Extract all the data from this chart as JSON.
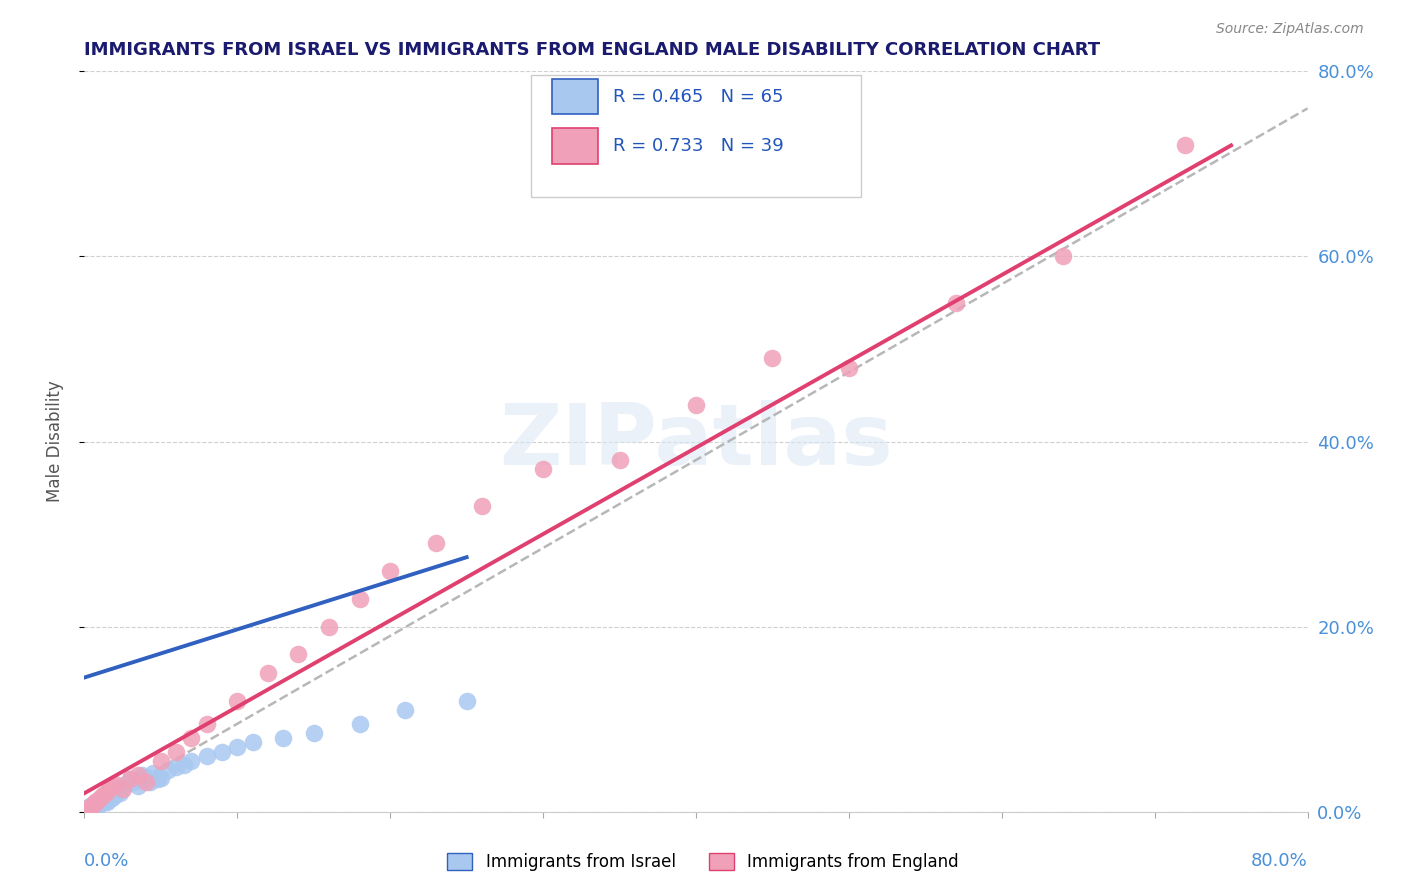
{
  "title": "IMMIGRANTS FROM ISRAEL VS IMMIGRANTS FROM ENGLAND MALE DISABILITY CORRELATION CHART",
  "source": "Source: ZipAtlas.com",
  "ylabel": "Male Disability",
  "watermark": "ZIPatlas",
  "legend_r1": "0.465",
  "legend_n1": "65",
  "legend_r2": "0.733",
  "legend_n2": "39",
  "color_israel": "#a8c8f0",
  "color_england": "#f0a0b8",
  "color_israel_line": "#3060c0",
  "color_england_line": "#e04070",
  "color_dashed": "#b0b0b0",
  "xlim": [
    0.0,
    0.8
  ],
  "ylim": [
    0.0,
    0.8
  ],
  "ytick_values": [
    0.0,
    0.2,
    0.4,
    0.6,
    0.8
  ],
  "israel_x": [
    0.0,
    0.001,
    0.002,
    0.002,
    0.003,
    0.003,
    0.003,
    0.004,
    0.004,
    0.004,
    0.005,
    0.005,
    0.005,
    0.006,
    0.006,
    0.006,
    0.007,
    0.007,
    0.008,
    0.008,
    0.009,
    0.009,
    0.01,
    0.01,
    0.011,
    0.011,
    0.012,
    0.012,
    0.013,
    0.013,
    0.014,
    0.015,
    0.015,
    0.016,
    0.017,
    0.018,
    0.019,
    0.02,
    0.021,
    0.022,
    0.023,
    0.025,
    0.027,
    0.03,
    0.032,
    0.035,
    0.038,
    0.04,
    0.043,
    0.045,
    0.048,
    0.05,
    0.055,
    0.06,
    0.065,
    0.07,
    0.08,
    0.09,
    0.1,
    0.11,
    0.13,
    0.15,
    0.18,
    0.21,
    0.25
  ],
  "israel_y": [
    0.0,
    0.001,
    0.001,
    0.003,
    0.002,
    0.004,
    0.005,
    0.002,
    0.003,
    0.006,
    0.003,
    0.005,
    0.007,
    0.004,
    0.006,
    0.008,
    0.005,
    0.009,
    0.006,
    0.01,
    0.007,
    0.011,
    0.008,
    0.012,
    0.009,
    0.013,
    0.01,
    0.015,
    0.011,
    0.016,
    0.012,
    0.01,
    0.018,
    0.014,
    0.016,
    0.015,
    0.02,
    0.018,
    0.022,
    0.025,
    0.02,
    0.028,
    0.03,
    0.035,
    0.032,
    0.028,
    0.04,
    0.038,
    0.032,
    0.042,
    0.035,
    0.036,
    0.045,
    0.048,
    0.05,
    0.055,
    0.06,
    0.065,
    0.07,
    0.075,
    0.08,
    0.085,
    0.095,
    0.11,
    0.12
  ],
  "england_x": [
    0.0,
    0.001,
    0.002,
    0.003,
    0.004,
    0.005,
    0.006,
    0.007,
    0.008,
    0.01,
    0.012,
    0.014,
    0.016,
    0.018,
    0.02,
    0.025,
    0.03,
    0.035,
    0.04,
    0.05,
    0.06,
    0.07,
    0.08,
    0.1,
    0.12,
    0.14,
    0.16,
    0.18,
    0.2,
    0.23,
    0.26,
    0.3,
    0.35,
    0.4,
    0.45,
    0.5,
    0.57,
    0.64,
    0.72
  ],
  "england_y": [
    0.0,
    0.002,
    0.003,
    0.004,
    0.005,
    0.006,
    0.008,
    0.01,
    0.012,
    0.015,
    0.018,
    0.02,
    0.025,
    0.028,
    0.03,
    0.025,
    0.035,
    0.04,
    0.032,
    0.055,
    0.065,
    0.08,
    0.095,
    0.12,
    0.15,
    0.17,
    0.2,
    0.23,
    0.26,
    0.29,
    0.33,
    0.37,
    0.38,
    0.44,
    0.49,
    0.48,
    0.55,
    0.6,
    0.72
  ],
  "israel_line_x0": 0.0,
  "israel_line_y0": 0.145,
  "israel_line_x1": 0.25,
  "israel_line_y1": 0.275,
  "england_line_x0": 0.0,
  "england_line_y0": 0.02,
  "england_line_x1": 0.75,
  "england_line_y1": 0.72,
  "dash_line_x0": 0.0,
  "dash_line_y0": 0.0,
  "dash_line_x1": 0.8,
  "dash_line_y1": 0.76
}
